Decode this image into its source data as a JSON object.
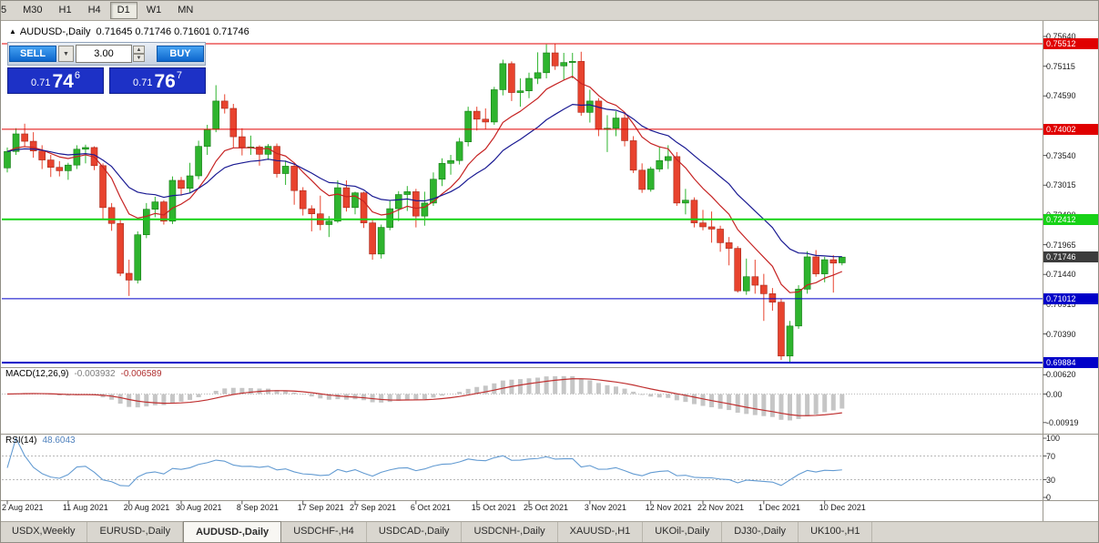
{
  "toolbar": {
    "timeframes": [
      {
        "label": "5",
        "active": false
      },
      {
        "label": "M30",
        "active": false
      },
      {
        "label": "H1",
        "active": false
      },
      {
        "label": "H4",
        "active": false
      },
      {
        "label": "D1",
        "active": true
      },
      {
        "label": "W1",
        "active": false
      },
      {
        "label": "MN",
        "active": false
      }
    ]
  },
  "chart": {
    "collapse_icon": "▲",
    "title": "AUDUSD-,Daily",
    "ohlc_display": "0.71645 0.71746 0.71601 0.71746"
  },
  "trade_panel": {
    "sell_label": "SELL",
    "buy_label": "BUY",
    "volume": "3.00",
    "dropdown_icon": "▼",
    "spin_up": "▲",
    "spin_down": "▼",
    "sell_price": {
      "prefix": "0.71",
      "big": "74",
      "sup": "6"
    },
    "buy_price": {
      "prefix": "0.71",
      "big": "76",
      "sup": "7"
    }
  },
  "price_axis": {
    "labels": [
      "0.75640",
      "0.75115",
      "0.74590",
      "0.73540",
      "0.73015",
      "0.72490",
      "0.71965",
      "0.71440",
      "0.70915",
      "0.70390"
    ],
    "badges": [
      {
        "label": "0.75512",
        "bg": "#e00000"
      },
      {
        "label": "0.74002",
        "bg": "#e00000"
      },
      {
        "label": "0.72412",
        "bg": "#17d217"
      },
      {
        "label": "0.71746",
        "bg": "#3c3c3c"
      },
      {
        "label": "0.71012",
        "bg": "#0000c8"
      },
      {
        "label": "0.69884",
        "bg": "#0000c8"
      }
    ]
  },
  "macd": {
    "label": "MACD(12,26,9)",
    "value_main": "-0.003932",
    "value_signal": "-0.006589",
    "axis": [
      {
        "label": "0.00620",
        "v": 0.0062
      },
      {
        "label": "0.00",
        "v": 0
      },
      {
        "label": "-0.00919",
        "v": -0.00919
      }
    ]
  },
  "rsi": {
    "label": "RSI(14)",
    "value": "48.6043",
    "axis": [
      {
        "label": "100",
        "v": 100
      },
      {
        "label": "70",
        "v": 70
      },
      {
        "label": "30",
        "v": 30
      },
      {
        "label": "0",
        "v": 0
      }
    ]
  },
  "dates": [
    {
      "label": "2 Aug 2021",
      "bar": 0
    },
    {
      "label": "11 Aug 2021",
      "bar": 7
    },
    {
      "label": "20 Aug 2021",
      "bar": 14
    },
    {
      "label": "30 Aug 2021",
      "bar": 20
    },
    {
      "label": "8 Sep 2021",
      "bar": 27
    },
    {
      "label": "17 Sep 2021",
      "bar": 34
    },
    {
      "label": "27 Sep 2021",
      "bar": 40
    },
    {
      "label": "6 Oct 2021",
      "bar": 47
    },
    {
      "label": "15 Oct 2021",
      "bar": 54
    },
    {
      "label": "25 Oct 2021",
      "bar": 60
    },
    {
      "label": "3 Nov 2021",
      "bar": 67
    },
    {
      "label": "12 Nov 2021",
      "bar": 74
    },
    {
      "label": "22 Nov 2021",
      "bar": 80
    },
    {
      "label": "1 Dec 2021",
      "bar": 87
    },
    {
      "label": "10 Dec 2021",
      "bar": 94
    }
  ],
  "tabs": [
    {
      "label": "USDX,Weekly",
      "active": false
    },
    {
      "label": "EURUSD-,Daily",
      "active": false
    },
    {
      "label": "AUDUSD-,Daily",
      "active": true
    },
    {
      "label": "USDCHF-,H4",
      "active": false
    },
    {
      "label": "USDCAD-,Daily",
      "active": false
    },
    {
      "label": "USDCNH-,Daily",
      "active": false
    },
    {
      "label": "XAUUSD-,H1",
      "active": false
    },
    {
      "label": "UKOil-,Daily",
      "active": false
    },
    {
      "label": "DJ30-,Daily",
      "active": false
    },
    {
      "label": "UK100-,H1",
      "active": false
    }
  ],
  "chart_data": {
    "type": "candlestick",
    "symbol": "AUDUSD-",
    "timeframe": "Daily",
    "last_candle_ohlc": [
      0.71645,
      0.71746,
      0.71601,
      0.71746
    ],
    "colors": {
      "up": "#2eb42e",
      "up_edge": "#157815",
      "down": "#e8432e",
      "down_edge": "#a5291b",
      "ma_fast": "#c62323",
      "ma_slow": "#191992",
      "macd_hist": "#c6c6c6",
      "macd_signal": "#bf3030",
      "rsi": "#639bd2",
      "grid_dots": "#b8b8b8"
    },
    "levels": [
      {
        "price": 0.75512,
        "color": "#e00000",
        "width": 1
      },
      {
        "price": 0.74002,
        "color": "#e00000",
        "width": 1
      },
      {
        "price": 0.72412,
        "color": "#17d217",
        "width": 2
      },
      {
        "price": 0.71012,
        "color": "#0000c8",
        "width": 1
      },
      {
        "price": 0.69884,
        "color": "#0000c8",
        "width": 2
      }
    ],
    "indicators": {
      "ma_fast_period": 9,
      "ma_slow_period": 19,
      "macd_params": [
        12,
        26,
        9
      ],
      "rsi_period": 14
    },
    "ohlc": [
      [
        0.7332,
        0.7368,
        0.7324,
        0.7361
      ],
      [
        0.7361,
        0.7402,
        0.7355,
        0.7392
      ],
      [
        0.7392,
        0.741,
        0.737,
        0.7379
      ],
      [
        0.7379,
        0.7395,
        0.735,
        0.7362
      ],
      [
        0.7362,
        0.7372,
        0.733,
        0.7346
      ],
      [
        0.7346,
        0.7355,
        0.7316,
        0.7333
      ],
      [
        0.7333,
        0.7344,
        0.7317,
        0.7327
      ],
      [
        0.7327,
        0.7341,
        0.7311,
        0.7337
      ],
      [
        0.7337,
        0.7372,
        0.733,
        0.7365
      ],
      [
        0.7365,
        0.7373,
        0.734,
        0.7368
      ],
      [
        0.7368,
        0.737,
        0.7328,
        0.7336
      ],
      [
        0.7336,
        0.734,
        0.724,
        0.7262
      ],
      [
        0.7262,
        0.727,
        0.7221,
        0.7234
      ],
      [
        0.7234,
        0.724,
        0.7141,
        0.7146
      ],
      [
        0.7146,
        0.717,
        0.7106,
        0.7134
      ],
      [
        0.7134,
        0.722,
        0.7128,
        0.7214
      ],
      [
        0.7214,
        0.727,
        0.7208,
        0.7259
      ],
      [
        0.7259,
        0.7281,
        0.7245,
        0.7272
      ],
      [
        0.7272,
        0.7275,
        0.7232,
        0.7238
      ],
      [
        0.7238,
        0.7317,
        0.7233,
        0.731
      ],
      [
        0.731,
        0.7316,
        0.7283,
        0.7296
      ],
      [
        0.7296,
        0.7341,
        0.7288,
        0.7318
      ],
      [
        0.7318,
        0.738,
        0.7312,
        0.737
      ],
      [
        0.737,
        0.7408,
        0.7355,
        0.74
      ],
      [
        0.74,
        0.7478,
        0.7395,
        0.745
      ],
      [
        0.745,
        0.7462,
        0.7428,
        0.7437
      ],
      [
        0.7437,
        0.7445,
        0.7368,
        0.7387
      ],
      [
        0.7387,
        0.7402,
        0.7354,
        0.7368
      ],
      [
        0.7368,
        0.7389,
        0.7355,
        0.7369
      ],
      [
        0.7369,
        0.7372,
        0.7336,
        0.7356
      ],
      [
        0.7356,
        0.7374,
        0.7346,
        0.737
      ],
      [
        0.737,
        0.7375,
        0.7315,
        0.7322
      ],
      [
        0.7322,
        0.7345,
        0.7302,
        0.7335
      ],
      [
        0.7335,
        0.734,
        0.7267,
        0.7292
      ],
      [
        0.7292,
        0.7298,
        0.7248,
        0.726
      ],
      [
        0.726,
        0.7266,
        0.722,
        0.7251
      ],
      [
        0.7251,
        0.7283,
        0.7222,
        0.7232
      ],
      [
        0.7232,
        0.7247,
        0.721,
        0.7238
      ],
      [
        0.7238,
        0.731,
        0.7235,
        0.7297
      ],
      [
        0.7297,
        0.731,
        0.7255,
        0.7262
      ],
      [
        0.7262,
        0.729,
        0.725,
        0.7288
      ],
      [
        0.7288,
        0.729,
        0.7226,
        0.7235
      ],
      [
        0.7235,
        0.7241,
        0.717,
        0.718
      ],
      [
        0.718,
        0.7232,
        0.7172,
        0.7227
      ],
      [
        0.7227,
        0.7275,
        0.7222,
        0.726
      ],
      [
        0.726,
        0.7291,
        0.7238,
        0.7285
      ],
      [
        0.7285,
        0.73,
        0.7256,
        0.729
      ],
      [
        0.729,
        0.7295,
        0.7227,
        0.7247
      ],
      [
        0.7247,
        0.729,
        0.723,
        0.727
      ],
      [
        0.727,
        0.7324,
        0.7265,
        0.7312
      ],
      [
        0.7312,
        0.7349,
        0.73,
        0.734
      ],
      [
        0.734,
        0.7355,
        0.732,
        0.7345
      ],
      [
        0.7345,
        0.7385,
        0.7338,
        0.7378
      ],
      [
        0.7378,
        0.744,
        0.737,
        0.7432
      ],
      [
        0.7432,
        0.744,
        0.7398,
        0.7418
      ],
      [
        0.7418,
        0.7437,
        0.74,
        0.7413
      ],
      [
        0.7413,
        0.7475,
        0.7408,
        0.747
      ],
      [
        0.747,
        0.7523,
        0.746,
        0.7516
      ],
      [
        0.7516,
        0.752,
        0.745,
        0.7465
      ],
      [
        0.7465,
        0.749,
        0.744,
        0.7468
      ],
      [
        0.7468,
        0.75,
        0.7455,
        0.749
      ],
      [
        0.749,
        0.7536,
        0.748,
        0.75
      ],
      [
        0.75,
        0.755,
        0.749,
        0.7535
      ],
      [
        0.7535,
        0.7551,
        0.7505,
        0.7512
      ],
      [
        0.7512,
        0.7535,
        0.7487,
        0.7518
      ],
      [
        0.7518,
        0.7535,
        0.749,
        0.752
      ],
      [
        0.752,
        0.7537,
        0.7424,
        0.743
      ],
      [
        0.743,
        0.747,
        0.7412,
        0.745
      ],
      [
        0.745,
        0.7455,
        0.7388,
        0.74
      ],
      [
        0.74,
        0.7425,
        0.736,
        0.7402
      ],
      [
        0.7402,
        0.7432,
        0.7388,
        0.742
      ],
      [
        0.742,
        0.743,
        0.737,
        0.738
      ],
      [
        0.738,
        0.7388,
        0.7323,
        0.7328
      ],
      [
        0.7328,
        0.734,
        0.7288,
        0.7294
      ],
      [
        0.7294,
        0.7334,
        0.729,
        0.733
      ],
      [
        0.733,
        0.737,
        0.7325,
        0.7345
      ],
      [
        0.7345,
        0.7372,
        0.733,
        0.7352
      ],
      [
        0.7352,
        0.736,
        0.7265,
        0.727
      ],
      [
        0.727,
        0.7295,
        0.725,
        0.7275
      ],
      [
        0.7275,
        0.728,
        0.7227,
        0.7235
      ],
      [
        0.7235,
        0.7258,
        0.7222,
        0.7228
      ],
      [
        0.7228,
        0.7255,
        0.72,
        0.7224
      ],
      [
        0.7224,
        0.723,
        0.7184,
        0.72
      ],
      [
        0.72,
        0.721,
        0.716,
        0.719
      ],
      [
        0.719,
        0.7194,
        0.7112,
        0.7115
      ],
      [
        0.7115,
        0.7172,
        0.7108,
        0.714
      ],
      [
        0.714,
        0.717,
        0.711,
        0.7125
      ],
      [
        0.7125,
        0.7145,
        0.7062,
        0.711
      ],
      [
        0.711,
        0.712,
        0.708,
        0.7095
      ],
      [
        0.7095,
        0.7101,
        0.6993,
        0.7
      ],
      [
        0.7,
        0.7062,
        0.699,
        0.7053
      ],
      [
        0.7053,
        0.7125,
        0.7048,
        0.7118
      ],
      [
        0.7118,
        0.7185,
        0.711,
        0.7175
      ],
      [
        0.7175,
        0.7187,
        0.714,
        0.7145
      ],
      [
        0.7145,
        0.7175,
        0.713,
        0.717
      ],
      [
        0.717,
        0.7178,
        0.7112,
        0.7164
      ],
      [
        0.71645,
        0.71746,
        0.71601,
        0.71746
      ]
    ]
  }
}
